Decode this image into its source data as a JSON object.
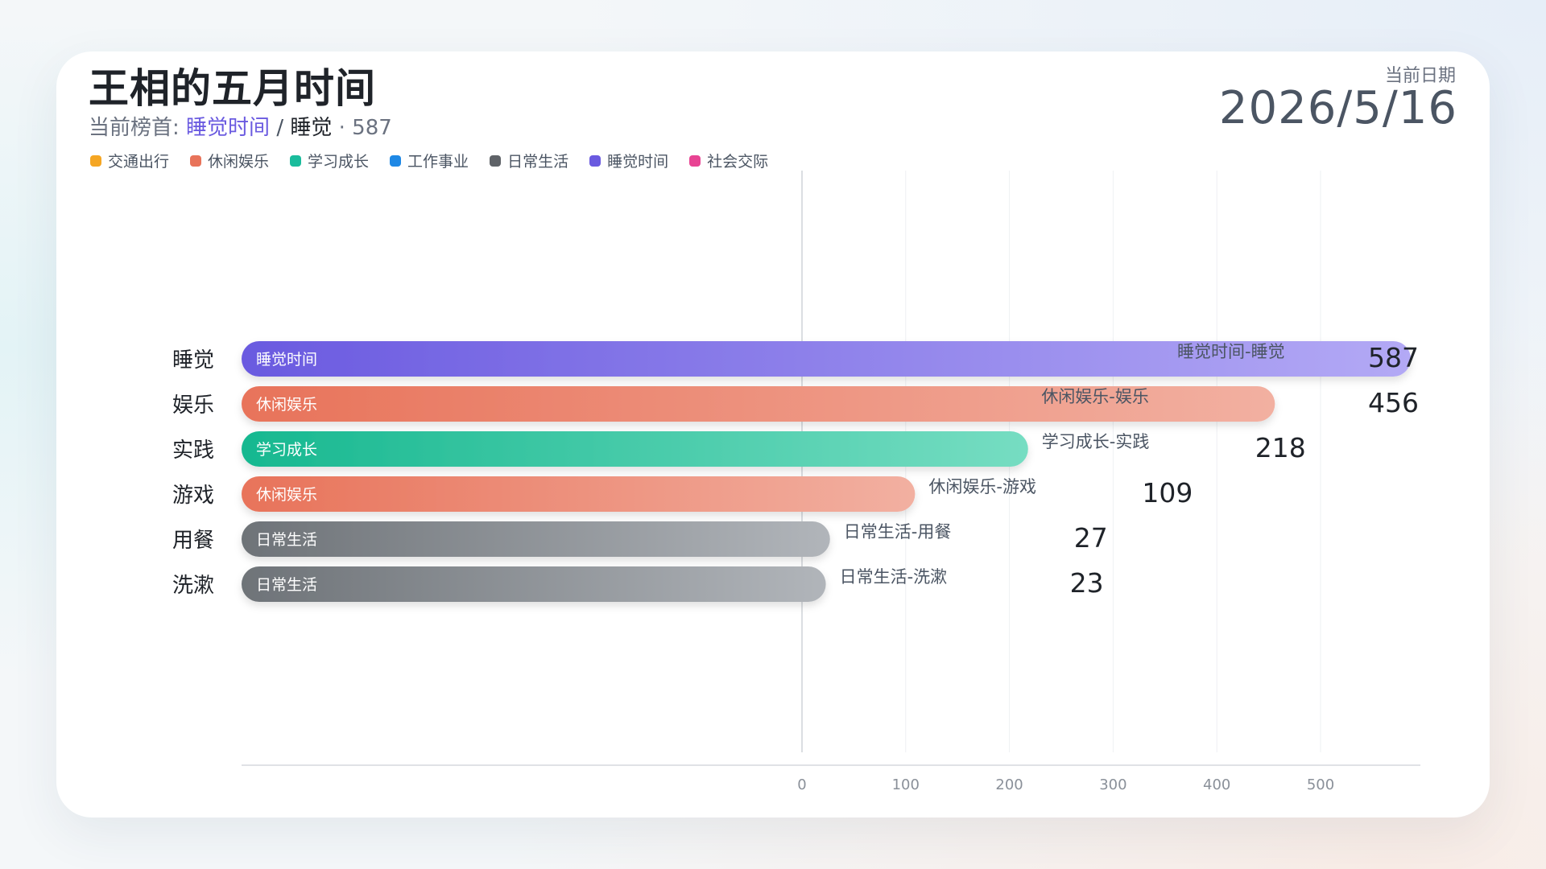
{
  "header": {
    "title": "王相的五月时间",
    "subtitle_prefix": "当前榜首:",
    "leader_category": "睡觉时间",
    "slash": "/",
    "leader_item": "睡觉",
    "dot": "·",
    "leader_value": "587",
    "date_label": "当前日期",
    "date_value": "2026/5/16"
  },
  "legend": [
    {
      "name": "交通出行",
      "color": "#f5a623"
    },
    {
      "name": "休闲娱乐",
      "color": "#e8735a"
    },
    {
      "name": "学习成长",
      "color": "#1abc9c"
    },
    {
      "name": "工作事业",
      "color": "#1e88e5"
    },
    {
      "name": "日常生活",
      "color": "#5f6368"
    },
    {
      "name": "睡觉时间",
      "color": "#6a5ae0"
    },
    {
      "name": "社会交际",
      "color": "#e84393"
    }
  ],
  "chart_data": {
    "type": "bar",
    "orientation": "horizontal",
    "xlim": [
      0,
      590
    ],
    "x_ticks": [
      "0",
      "100",
      "200",
      "300",
      "400",
      "500"
    ],
    "grid": true,
    "bars": [
      {
        "item": "睡觉",
        "category": "睡觉时间",
        "label": "睡觉时间-睡觉",
        "value": 587,
        "value_text": "587",
        "color_start": "#6a5ae0",
        "color_end": "#b3a9f5"
      },
      {
        "item": "娱乐",
        "category": "休闲娱乐",
        "label": "休闲娱乐-娱乐",
        "value": 456,
        "value_text": "456",
        "color_start": "#e8735a",
        "color_end": "#f2b0a1"
      },
      {
        "item": "实践",
        "category": "学习成长",
        "label": "学习成长-实践",
        "value": 218,
        "value_text": "218",
        "color_start": "#17b890",
        "color_end": "#76ddc2"
      },
      {
        "item": "游戏",
        "category": "休闲娱乐",
        "label": "休闲娱乐-游戏",
        "value": 109,
        "value_text": "109",
        "color_start": "#e8735a",
        "color_end": "#f2b0a1"
      },
      {
        "item": "用餐",
        "category": "日常生活",
        "label": "日常生活-用餐",
        "value": 27,
        "value_text": "27",
        "color_start": "#6e7378",
        "color_end": "#b1b5ba"
      },
      {
        "item": "洗漱",
        "category": "日常生活",
        "label": "日常生活-洗漱",
        "value": 23,
        "value_text": "23",
        "color_start": "#6e7378",
        "color_end": "#b1b5ba"
      }
    ]
  }
}
